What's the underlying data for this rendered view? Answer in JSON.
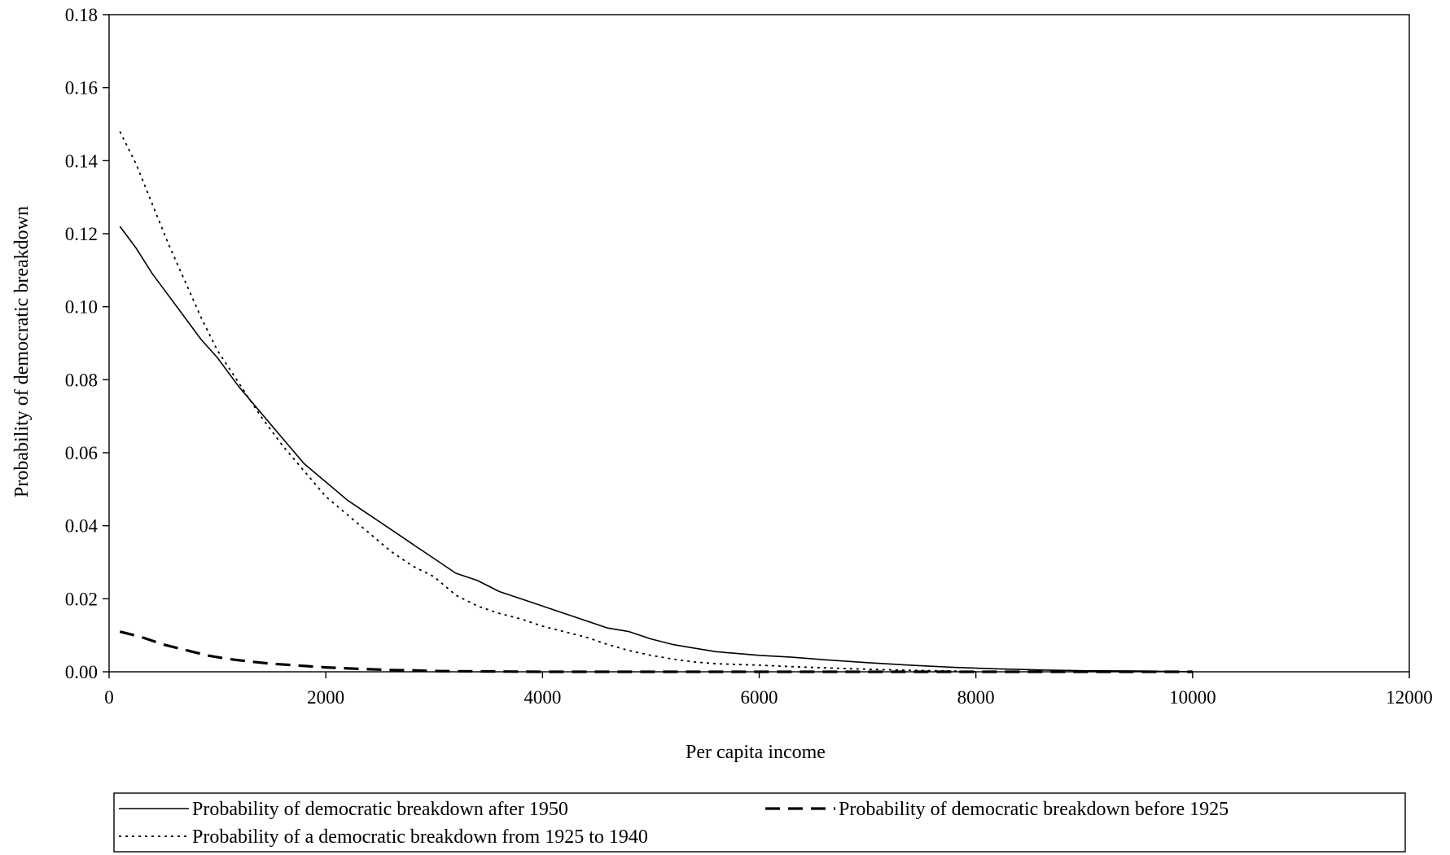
{
  "chart_data": {
    "type": "line",
    "title": "",
    "xlabel": "Per capita income",
    "ylabel": "Probability of democratic breakdown",
    "xlim": [
      0,
      12000
    ],
    "ylim": [
      0,
      0.18
    ],
    "xticks": [
      0,
      2000,
      4000,
      6000,
      8000,
      10000,
      12000
    ],
    "yticks": [
      "0.00",
      "0.02",
      "0.04",
      "0.06",
      "0.08",
      "0.10",
      "0.12",
      "0.14",
      "0.16",
      "0.18"
    ],
    "grid": false,
    "legend_position": "bottom",
    "series": [
      {
        "name": "Probability of democratic breakdown after 1950",
        "style": "solid",
        "x": [
          100,
          250,
          400,
          550,
          700,
          850,
          1000,
          1200,
          1400,
          1600,
          1800,
          2000,
          2200,
          2400,
          2600,
          2800,
          3000,
          3200,
          3400,
          3600,
          3800,
          4000,
          4200,
          4400,
          4600,
          4800,
          5000,
          5200,
          5400,
          5600,
          5800,
          6000,
          6300,
          6600,
          7000,
          7400,
          7800,
          8200,
          8600,
          9000,
          9500,
          10000
        ],
        "y": [
          0.122,
          0.116,
          0.109,
          0.103,
          0.097,
          0.091,
          0.086,
          0.078,
          0.071,
          0.064,
          0.057,
          0.052,
          0.047,
          0.043,
          0.039,
          0.035,
          0.031,
          0.027,
          0.025,
          0.022,
          0.02,
          0.018,
          0.016,
          0.014,
          0.012,
          0.011,
          0.009,
          0.0075,
          0.0065,
          0.0055,
          0.005,
          0.0045,
          0.004,
          0.0033,
          0.0025,
          0.0018,
          0.0012,
          0.0008,
          0.0005,
          0.0003,
          0.0002,
          0.0
        ]
      },
      {
        "name": "Probability of democratic breakdown before 1925",
        "style": "dashed",
        "x": [
          100,
          300,
          500,
          700,
          900,
          1100,
          1300,
          1500,
          1700,
          2000,
          2300,
          2600,
          2800,
          3000,
          4000,
          6000,
          8000,
          10000
        ],
        "y": [
          0.011,
          0.0095,
          0.0075,
          0.006,
          0.0045,
          0.0035,
          0.0028,
          0.0022,
          0.0018,
          0.0012,
          0.0008,
          0.0005,
          0.0004,
          0.0002,
          0.0,
          0.0,
          0.0,
          0.0
        ]
      },
      {
        "name": "Probability of a democratic breakdown from 1925 to 1940",
        "style": "dotted",
        "x": [
          100,
          250,
          400,
          550,
          700,
          850,
          1000,
          1200,
          1400,
          1600,
          1800,
          2000,
          2200,
          2400,
          2600,
          2800,
          3000,
          3200,
          3400,
          3600,
          3800,
          4000,
          4200,
          4400,
          4600,
          4800,
          5000,
          5200,
          5400,
          5600,
          5800,
          6000,
          6300,
          6600,
          7000,
          7400,
          7800,
          8000
        ],
        "y": [
          0.148,
          0.139,
          0.128,
          0.117,
          0.107,
          0.097,
          0.088,
          0.079,
          0.07,
          0.062,
          0.055,
          0.048,
          0.043,
          0.038,
          0.033,
          0.029,
          0.026,
          0.021,
          0.018,
          0.016,
          0.0145,
          0.0125,
          0.011,
          0.0095,
          0.0075,
          0.0058,
          0.0045,
          0.0035,
          0.0027,
          0.0022,
          0.002,
          0.0018,
          0.0014,
          0.0011,
          0.0007,
          0.0004,
          0.0002,
          0.0
        ]
      }
    ]
  }
}
